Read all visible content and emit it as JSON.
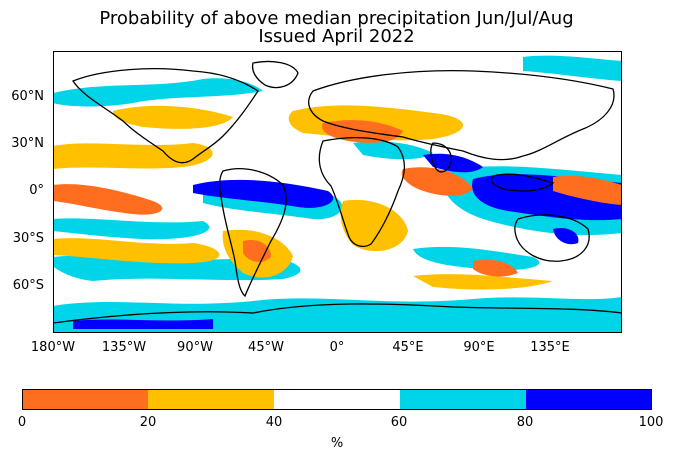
{
  "title": {
    "line1": "Probability of above median precipitation Jun/Jul/Aug",
    "line2": "Issued April 2022"
  },
  "map": {
    "projection": "equirectangular",
    "lat_labels": [
      "60°N",
      "30°N",
      "0°",
      "30°S",
      "60°S"
    ],
    "lon_labels": [
      "180°W",
      "135°W",
      "90°W",
      "45°W",
      "0°",
      "45°E",
      "90°E",
      "135°E"
    ]
  },
  "colorbar": {
    "ticks": [
      "0",
      "20",
      "40",
      "60",
      "80",
      "100"
    ],
    "unit": "%",
    "colors": [
      "#ff6d1f",
      "#ffc000",
      "#ffffff",
      "#00d4e8",
      "#0000ff"
    ]
  }
}
